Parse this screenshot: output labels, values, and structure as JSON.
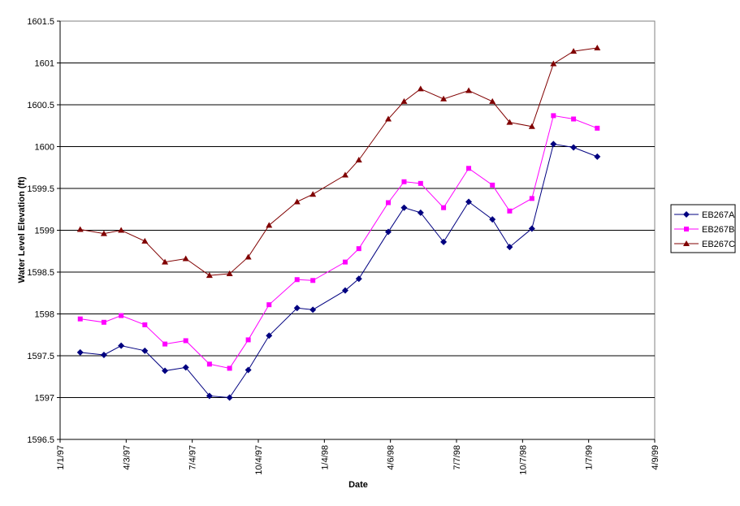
{
  "chart_data": {
    "type": "line",
    "xlabel": "Date",
    "ylabel": "Water Level Elevation (ft)",
    "x": [
      "1997-01-29",
      "1997-03-03",
      "1997-03-27",
      "1997-04-29",
      "1997-05-27",
      "1997-06-25",
      "1997-07-28",
      "1997-08-25",
      "1997-09-20",
      "1997-10-19",
      "1997-11-27",
      "1997-12-19",
      "1998-02-02",
      "1998-02-21",
      "1998-04-03",
      "1998-04-25",
      "1998-05-18",
      "1998-06-19",
      "1998-07-24",
      "1998-08-26",
      "1998-09-19",
      "1998-10-20",
      "1998-11-19",
      "1998-12-17",
      "1999-01-19"
    ],
    "series": [
      {
        "name": "EB267A",
        "color": "#000080",
        "marker": "diamond",
        "values": [
          1597.54,
          1597.51,
          1597.62,
          1597.56,
          1597.32,
          1597.36,
          1597.02,
          1597.0,
          1597.33,
          1597.74,
          1598.07,
          1598.05,
          1598.28,
          1598.42,
          1598.98,
          1599.27,
          1599.21,
          1598.86,
          1599.34,
          1599.13,
          1598.8,
          1599.02,
          1600.03,
          1599.99,
          1599.88
        ]
      },
      {
        "name": "EB267B",
        "color": "#ff00ff",
        "marker": "square",
        "values": [
          1597.94,
          1597.9,
          1597.98,
          1597.87,
          1597.64,
          1597.68,
          1597.4,
          1597.35,
          1597.69,
          1598.11,
          1598.41,
          1598.4,
          1598.62,
          1598.78,
          1599.33,
          1599.58,
          1599.56,
          1599.27,
          1599.74,
          1599.54,
          1599.23,
          1599.38,
          1600.37,
          1600.33,
          1600.22
        ]
      },
      {
        "name": "EB267C",
        "color": "#800000",
        "marker": "triangle",
        "values": [
          1599.01,
          1598.96,
          1599.0,
          1598.87,
          1598.62,
          1598.66,
          1598.46,
          1598.48,
          1598.68,
          1599.06,
          1599.34,
          1599.43,
          1599.66,
          1599.84,
          1600.33,
          1600.54,
          1600.69,
          1600.57,
          1600.67,
          1600.54,
          1600.29,
          1600.24,
          1600.99,
          1601.14,
          1601.18
        ]
      }
    ],
    "xlim": [
      "1997-01-01",
      "1999-04-09"
    ],
    "xticks": [
      {
        "value": "1997-01-01",
        "label": "1/1/97"
      },
      {
        "value": "1997-04-03",
        "label": "4/3/97"
      },
      {
        "value": "1997-07-04",
        "label": "7/4/97"
      },
      {
        "value": "1997-10-04",
        "label": "10/4/97"
      },
      {
        "value": "1998-01-04",
        "label": "1/4/98"
      },
      {
        "value": "1998-04-06",
        "label": "4/6/98"
      },
      {
        "value": "1998-07-07",
        "label": "7/7/98"
      },
      {
        "value": "1998-10-07",
        "label": "10/7/98"
      },
      {
        "value": "1999-01-07",
        "label": "1/7/99"
      },
      {
        "value": "1999-04-09",
        "label": "4/9/99"
      }
    ],
    "ylim": [
      1596.5,
      1601.5
    ],
    "yticks": [
      1596.5,
      1597,
      1597.5,
      1598,
      1598.5,
      1599,
      1599.5,
      1600,
      1600.5,
      1601,
      1601.5
    ],
    "grid": true,
    "legend": "right"
  }
}
